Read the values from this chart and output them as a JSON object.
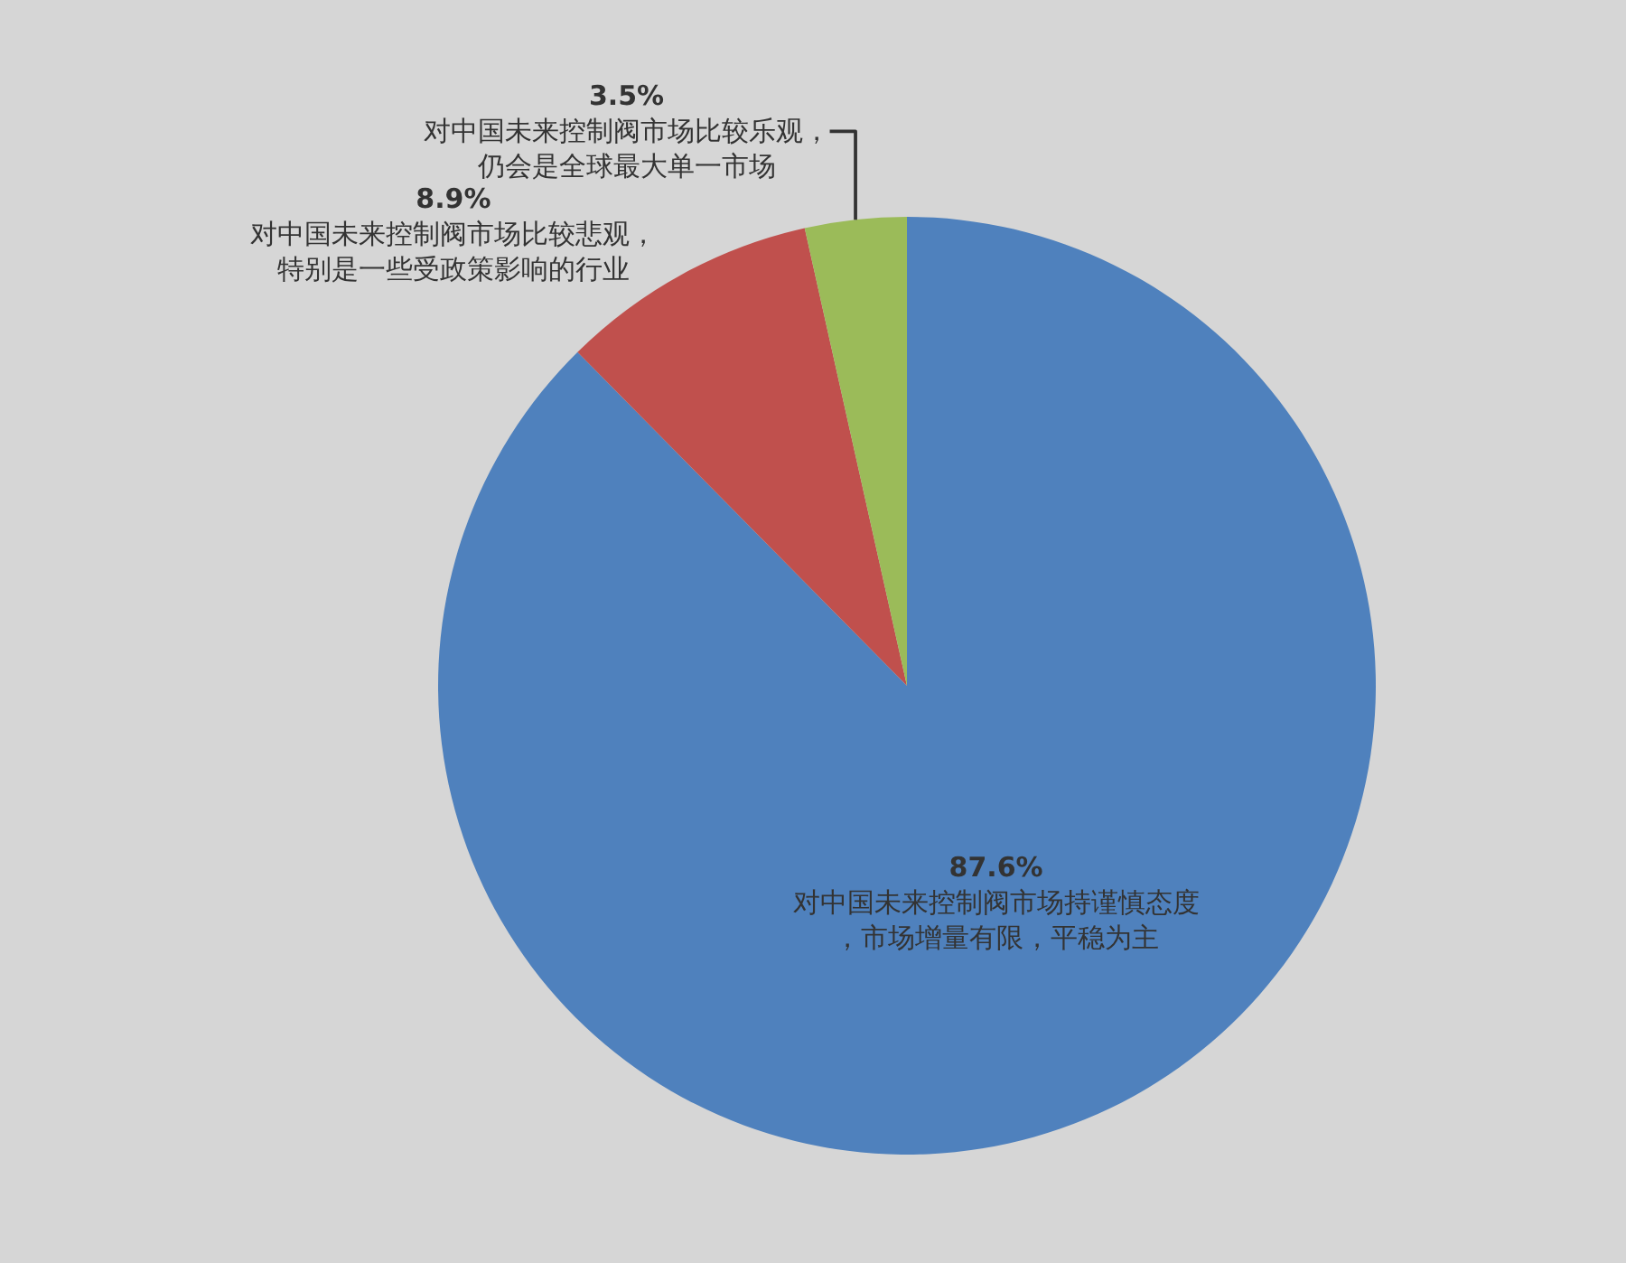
{
  "chart_data": {
    "type": "pie",
    "categories": [
      "对中国未来控制阀市场持谨慎态度，市场增量有限，平稳为主",
      "对中国未来控制阀市场比较悲观，特别是一些受政策影响的行业",
      "对中国未来控制阀市场比较乐观，仍会是全球最大单一市场"
    ],
    "values": [
      87.6,
      8.9,
      3.5
    ],
    "value_labels": [
      "87.6%",
      "8.9%",
      "3.5%"
    ],
    "colors": [
      "#4f81bd",
      "#c0504d",
      "#9bbb59"
    ],
    "legend": false
  }
}
